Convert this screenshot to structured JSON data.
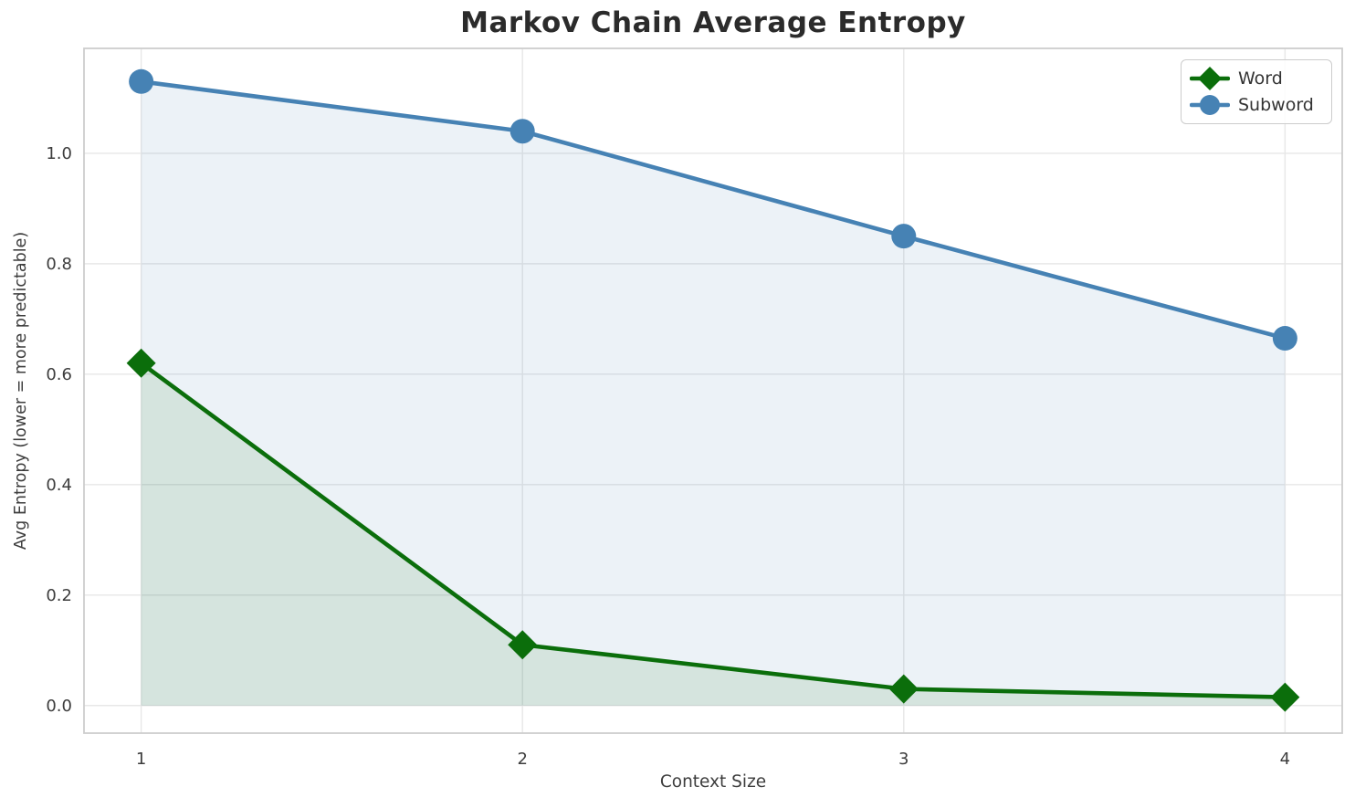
{
  "title": "Markov Chain Average Entropy",
  "chart_data": {
    "type": "line",
    "title": "Markov Chain Average Entropy",
    "xlabel": "Context Size",
    "ylabel": "Avg Entropy (lower = more predictable)",
    "x": [
      1,
      2,
      3,
      4
    ],
    "series": [
      {
        "name": "Word",
        "values": [
          0.62,
          0.11,
          0.03,
          0.015
        ],
        "color": "#0b6e0b",
        "marker": "diamond"
      },
      {
        "name": "Subword",
        "values": [
          1.13,
          1.04,
          0.85,
          0.665
        ],
        "color": "#4682b4",
        "marker": "circle"
      }
    ],
    "area_fill": true,
    "fill_opacity": 0.1,
    "xticks": [
      1,
      2,
      3,
      4
    ],
    "xtick_labels": [
      "1",
      "2",
      "3",
      "4"
    ],
    "yticks": [
      0.0,
      0.2,
      0.4,
      0.6,
      0.8,
      1.0
    ],
    "ytick_labels": [
      "0.0",
      "0.2",
      "0.4",
      "0.6",
      "0.8",
      "1.0"
    ],
    "xlim": [
      0.85,
      4.15
    ],
    "ylim": [
      -0.05,
      1.19
    ],
    "grid": true,
    "legend_position": "upper right"
  }
}
